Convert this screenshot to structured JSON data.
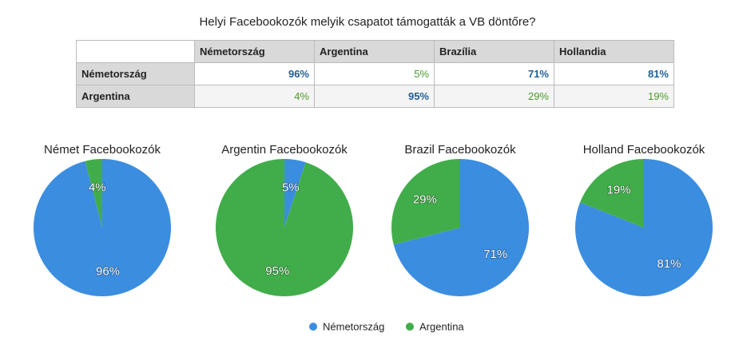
{
  "title": "Helyi Facebookozók melyik csapatot támogatták a VB döntőre?",
  "table": {
    "columns": [
      "Németország",
      "Argentina",
      "Brazília",
      "Hollandia"
    ],
    "rows": [
      {
        "label": "Németország",
        "cells": [
          "96%",
          "5%",
          "71%",
          "81%"
        ]
      },
      {
        "label": "Argentina",
        "cells": [
          "4%",
          "95%",
          "29%",
          "19%"
        ]
      }
    ]
  },
  "chart_data": [
    {
      "type": "pie",
      "title": "Német Facebookozók",
      "categories": [
        "Németország",
        "Argentina"
      ],
      "values": [
        96,
        4
      ],
      "value_labels": [
        "96%",
        "4%"
      ],
      "colors": [
        "#3b8de0",
        "#41ad4a"
      ]
    },
    {
      "type": "pie",
      "title": "Argentin Facebookozók",
      "categories": [
        "Németország",
        "Argentina"
      ],
      "values": [
        5,
        95
      ],
      "value_labels": [
        "5%",
        "95%"
      ],
      "colors": [
        "#3b8de0",
        "#41ad4a"
      ]
    },
    {
      "type": "pie",
      "title": "Brazil Facebookozók",
      "categories": [
        "Németország",
        "Argentina"
      ],
      "values": [
        71,
        29
      ],
      "value_labels": [
        "71%",
        "29%"
      ],
      "colors": [
        "#3b8de0",
        "#41ad4a"
      ]
    },
    {
      "type": "pie",
      "title": "Holland Facebookozók",
      "categories": [
        "Németország",
        "Argentina"
      ],
      "values": [
        81,
        19
      ],
      "value_labels": [
        "81%",
        "19%"
      ],
      "colors": [
        "#3b8de0",
        "#41ad4a"
      ]
    }
  ]
}
